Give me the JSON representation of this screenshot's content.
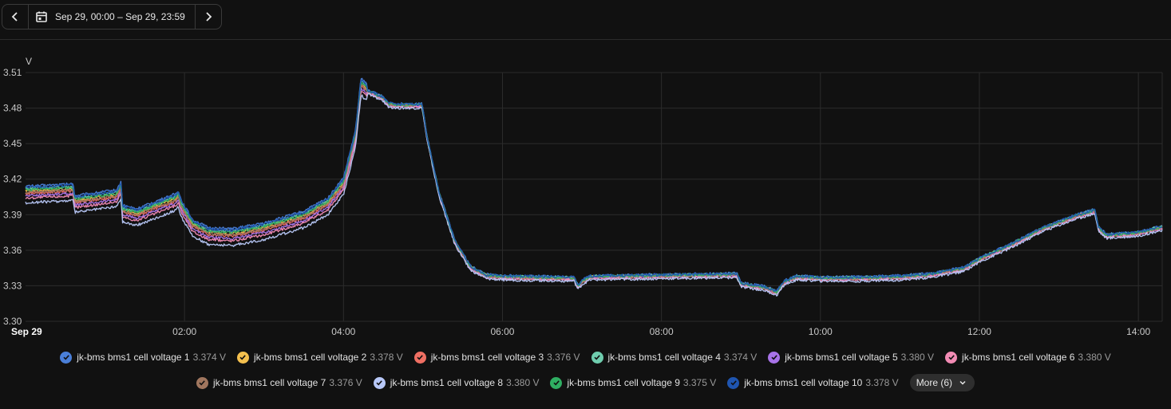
{
  "toolbar": {
    "date_range": "Sep 29, 00:00 – Sep 29, 23:59",
    "prev_icon": "chevron-left-icon",
    "next_icon": "chevron-right-icon",
    "calendar_icon": "calendar-icon"
  },
  "chart_data": {
    "type": "line",
    "ylabel": "V",
    "ylim": [
      3.3,
      3.51
    ],
    "yticks": [
      "3.30",
      "3.33",
      "3.36",
      "3.39",
      "3.42",
      "3.45",
      "3.48",
      "3.51"
    ],
    "xlim": [
      0,
      14.3
    ],
    "xticks": [
      {
        "x": 0,
        "label": "Sep 29"
      },
      {
        "x": 2,
        "label": "02:00"
      },
      {
        "x": 4,
        "label": "04:00"
      },
      {
        "x": 6,
        "label": "06:00"
      },
      {
        "x": 8,
        "label": "08:00"
      },
      {
        "x": 10,
        "label": "10:00"
      },
      {
        "x": 12,
        "label": "12:00"
      },
      {
        "x": 14,
        "label": "14:00"
      }
    ],
    "grid": true,
    "legend_position": "bottom",
    "base_curve": [
      [
        0.0,
        3.408
      ],
      [
        0.6,
        3.41
      ],
      [
        0.62,
        3.4
      ],
      [
        1.15,
        3.405
      ],
      [
        1.2,
        3.412
      ],
      [
        1.22,
        3.392
      ],
      [
        1.4,
        3.389
      ],
      [
        1.9,
        3.402
      ],
      [
        1.92,
        3.405
      ],
      [
        1.96,
        3.396
      ],
      [
        2.1,
        3.38
      ],
      [
        2.3,
        3.373
      ],
      [
        2.6,
        3.372
      ],
      [
        3.0,
        3.377
      ],
      [
        3.5,
        3.387
      ],
      [
        3.8,
        3.398
      ],
      [
        4.0,
        3.415
      ],
      [
        4.15,
        3.455
      ],
      [
        4.22,
        3.499
      ],
      [
        4.3,
        3.494
      ],
      [
        4.5,
        3.488
      ],
      [
        4.56,
        3.483
      ],
      [
        4.7,
        3.482
      ],
      [
        4.99,
        3.482
      ],
      [
        5.05,
        3.455
      ],
      [
        5.2,
        3.408
      ],
      [
        5.4,
        3.367
      ],
      [
        5.6,
        3.345
      ],
      [
        5.8,
        3.338
      ],
      [
        6.0,
        3.337
      ],
      [
        6.9,
        3.336
      ],
      [
        6.95,
        3.329
      ],
      [
        7.0,
        3.333
      ],
      [
        7.1,
        3.337
      ],
      [
        8.0,
        3.338
      ],
      [
        8.95,
        3.339
      ],
      [
        9.0,
        3.331
      ],
      [
        9.3,
        3.328
      ],
      [
        9.45,
        3.324
      ],
      [
        9.55,
        3.333
      ],
      [
        9.7,
        3.337
      ],
      [
        10.0,
        3.336
      ],
      [
        10.5,
        3.336
      ],
      [
        11.0,
        3.337
      ],
      [
        11.4,
        3.339
      ],
      [
        11.55,
        3.341
      ],
      [
        11.8,
        3.344
      ],
      [
        12.0,
        3.352
      ],
      [
        12.4,
        3.364
      ],
      [
        12.8,
        3.378
      ],
      [
        13.2,
        3.388
      ],
      [
        13.45,
        3.393
      ],
      [
        13.5,
        3.378
      ],
      [
        13.6,
        3.372
      ],
      [
        14.0,
        3.374
      ],
      [
        14.3,
        3.379
      ]
    ],
    "series": [
      {
        "name": "jk-bms bms1 cell voltage 1",
        "current": "3.374 V",
        "color": "#4a7fd8",
        "offset_start": 0.006
      },
      {
        "name": "jk-bms bms1 cell voltage 2",
        "current": "3.378 V",
        "color": "#f4c04e",
        "offset_start": 0.002
      },
      {
        "name": "jk-bms bms1 cell voltage 3",
        "current": "3.376 V",
        "color": "#ef6f63",
        "offset_start": 0.0
      },
      {
        "name": "jk-bms bms1 cell voltage 4",
        "current": "3.374 V",
        "color": "#6fcdae",
        "offset_start": 0.004
      },
      {
        "name": "jk-bms bms1 cell voltage 5",
        "current": "3.380 V",
        "color": "#a873e8",
        "offset_start": -0.002
      },
      {
        "name": "jk-bms bms1 cell voltage 6",
        "current": "3.380 V",
        "color": "#f28bb4",
        "offset_start": -0.004
      },
      {
        "name": "jk-bms bms1 cell voltage 7",
        "current": "3.376 V",
        "color": "#a0765e",
        "offset_start": 0.001
      },
      {
        "name": "jk-bms bms1 cell voltage 8",
        "current": "3.380 V",
        "color": "#b8c8f8",
        "offset_start": -0.008
      },
      {
        "name": "jk-bms bms1 cell voltage 9",
        "current": "3.375 V",
        "color": "#2fae62",
        "offset_start": 0.003
      },
      {
        "name": "jk-bms bms1 cell voltage 10",
        "current": "3.378 V",
        "color": "#1f55b0",
        "offset_start": 0.005
      }
    ]
  },
  "legend": {
    "more_label": "More (6)",
    "check_icon": "check-icon",
    "more_icon": "chevron-down-icon"
  }
}
